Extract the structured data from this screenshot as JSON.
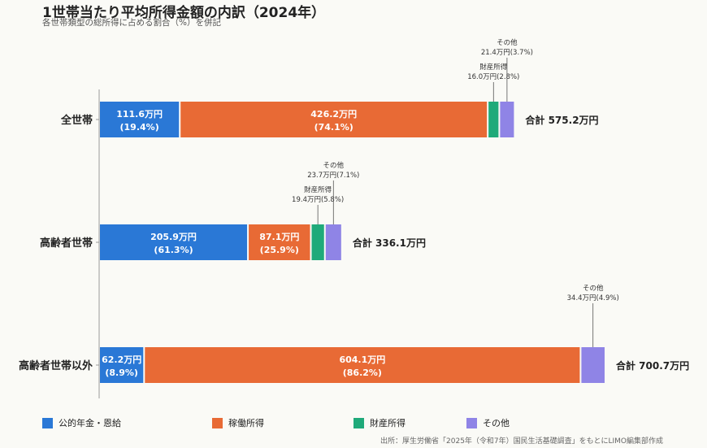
{
  "title": "1世帯当たり平均所得金額の内訳（2024年）",
  "subtitle": "各世帯類型の総所得に占める割合（%）を併記",
  "source": "出所：厚生労働省「2025年（令和7年）国民生活基礎調査」をもとにLIMO編集部作成",
  "chart_data": {
    "type": "bar",
    "orientation": "horizontal",
    "stacked": true,
    "categories": [
      "全世帯",
      "高齢者世帯",
      "高齢者世帯以外"
    ],
    "series": [
      {
        "name": "公的年金・恩給",
        "color": "#2a78d6",
        "values": [
          111.6,
          205.9,
          62.2
        ],
        "labels": [
          "111.6万円",
          "205.9万円",
          "62.2万円"
        ],
        "pct": [
          "(19.4%)",
          "(61.3%)",
          "(8.9%)"
        ]
      },
      {
        "name": "稼働所得",
        "color": "#e86a35",
        "values": [
          426.2,
          87.1,
          604.1
        ],
        "labels": [
          "426.2万円",
          "87.1万円",
          "604.1万円"
        ],
        "pct": [
          "(74.1%)",
          "(25.9%)",
          "(86.2%)"
        ]
      },
      {
        "name": "財産所得",
        "color": "#1faa7a",
        "values": [
          16.0,
          19.4,
          0
        ],
        "labels": [
          "財産所得\n16.0万円(2.8%)",
          "財産所得\n19.4万円(5.8%)",
          ""
        ]
      },
      {
        "name": "その他",
        "color": "#8f84e6",
        "values": [
          21.4,
          23.7,
          34.4
        ],
        "labels": [
          "その他\n21.4万円(3.7%)",
          "その他\n23.7万円(7.1%)",
          "その他\n34.4万円(4.9%)"
        ]
      }
    ],
    "totals": [
      "合計 575.2万円",
      "合計 336.1万円",
      "合計 700.7万円"
    ],
    "xlim": [
      0,
      700.7
    ],
    "legend_position": "bottom"
  }
}
